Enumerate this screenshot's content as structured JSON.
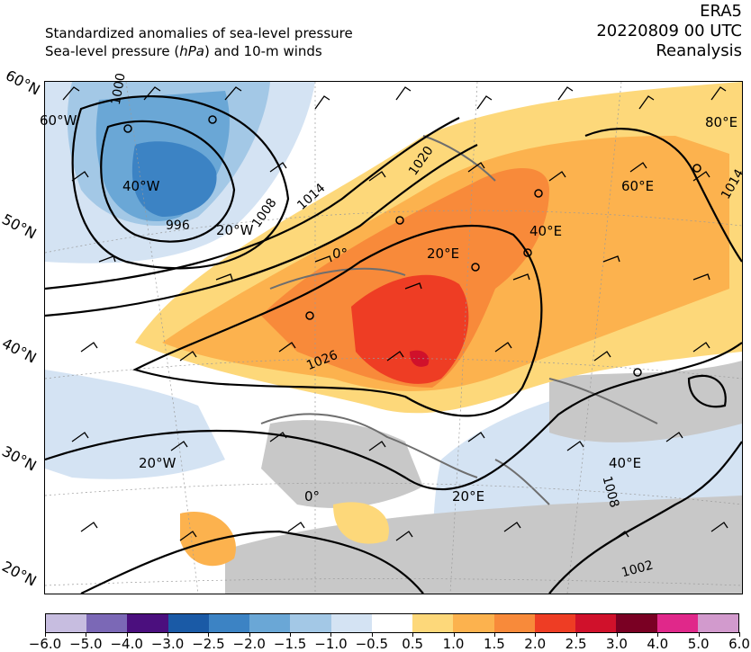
{
  "header": {
    "line1": "Standardized anomalies of sea-level pressure",
    "line2_pre": "Sea-level pressure (",
    "line2_unit": "hPa",
    "line2_post": ") and 10-m winds",
    "dataset": "ERA5",
    "datetime": "20220809 00 UTC",
    "product": "Reanalysis"
  },
  "latitude_labels": [
    "60°N",
    "50°N",
    "40°N",
    "30°N",
    "20°N"
  ],
  "graticule_labels": [
    "60°W",
    "40°W",
    "20°W",
    "0°",
    "20°E",
    "40°E",
    "60°E",
    "80°E",
    "20°W",
    "0°",
    "20°E",
    "40°E"
  ],
  "isobar_labels": [
    "1000",
    "996",
    "1008",
    "1014",
    "1020",
    "1026",
    "1014",
    "1008",
    "1002"
  ],
  "colorbar": {
    "ticks": [
      "−6.0",
      "−5.0",
      "−4.0",
      "−3.0",
      "−2.5",
      "−2.0",
      "−1.5",
      "−1.0",
      "−0.5",
      "0.5",
      "1.0",
      "1.5",
      "2.0",
      "2.5",
      "3.0",
      "4.0",
      "5.0",
      "6.0"
    ],
    "colors": [
      "#c7bde0",
      "#7b68b6",
      "#4b0f7e",
      "#1a5aa6",
      "#3c83c4",
      "#6aa7d6",
      "#a3c8e6",
      "#d4e3f3",
      "#ffffff",
      "#fdd87a",
      "#fcb24e",
      "#f88a3a",
      "#ee3d24",
      "#d0112b",
      "#7a0023",
      "#e0288a",
      "#d29acd"
    ]
  },
  "colors": {
    "land_grey": "#c8c8c8",
    "coast": "#6e6e6e",
    "isobar": "#000000",
    "graticule": "#9a9a9a"
  }
}
